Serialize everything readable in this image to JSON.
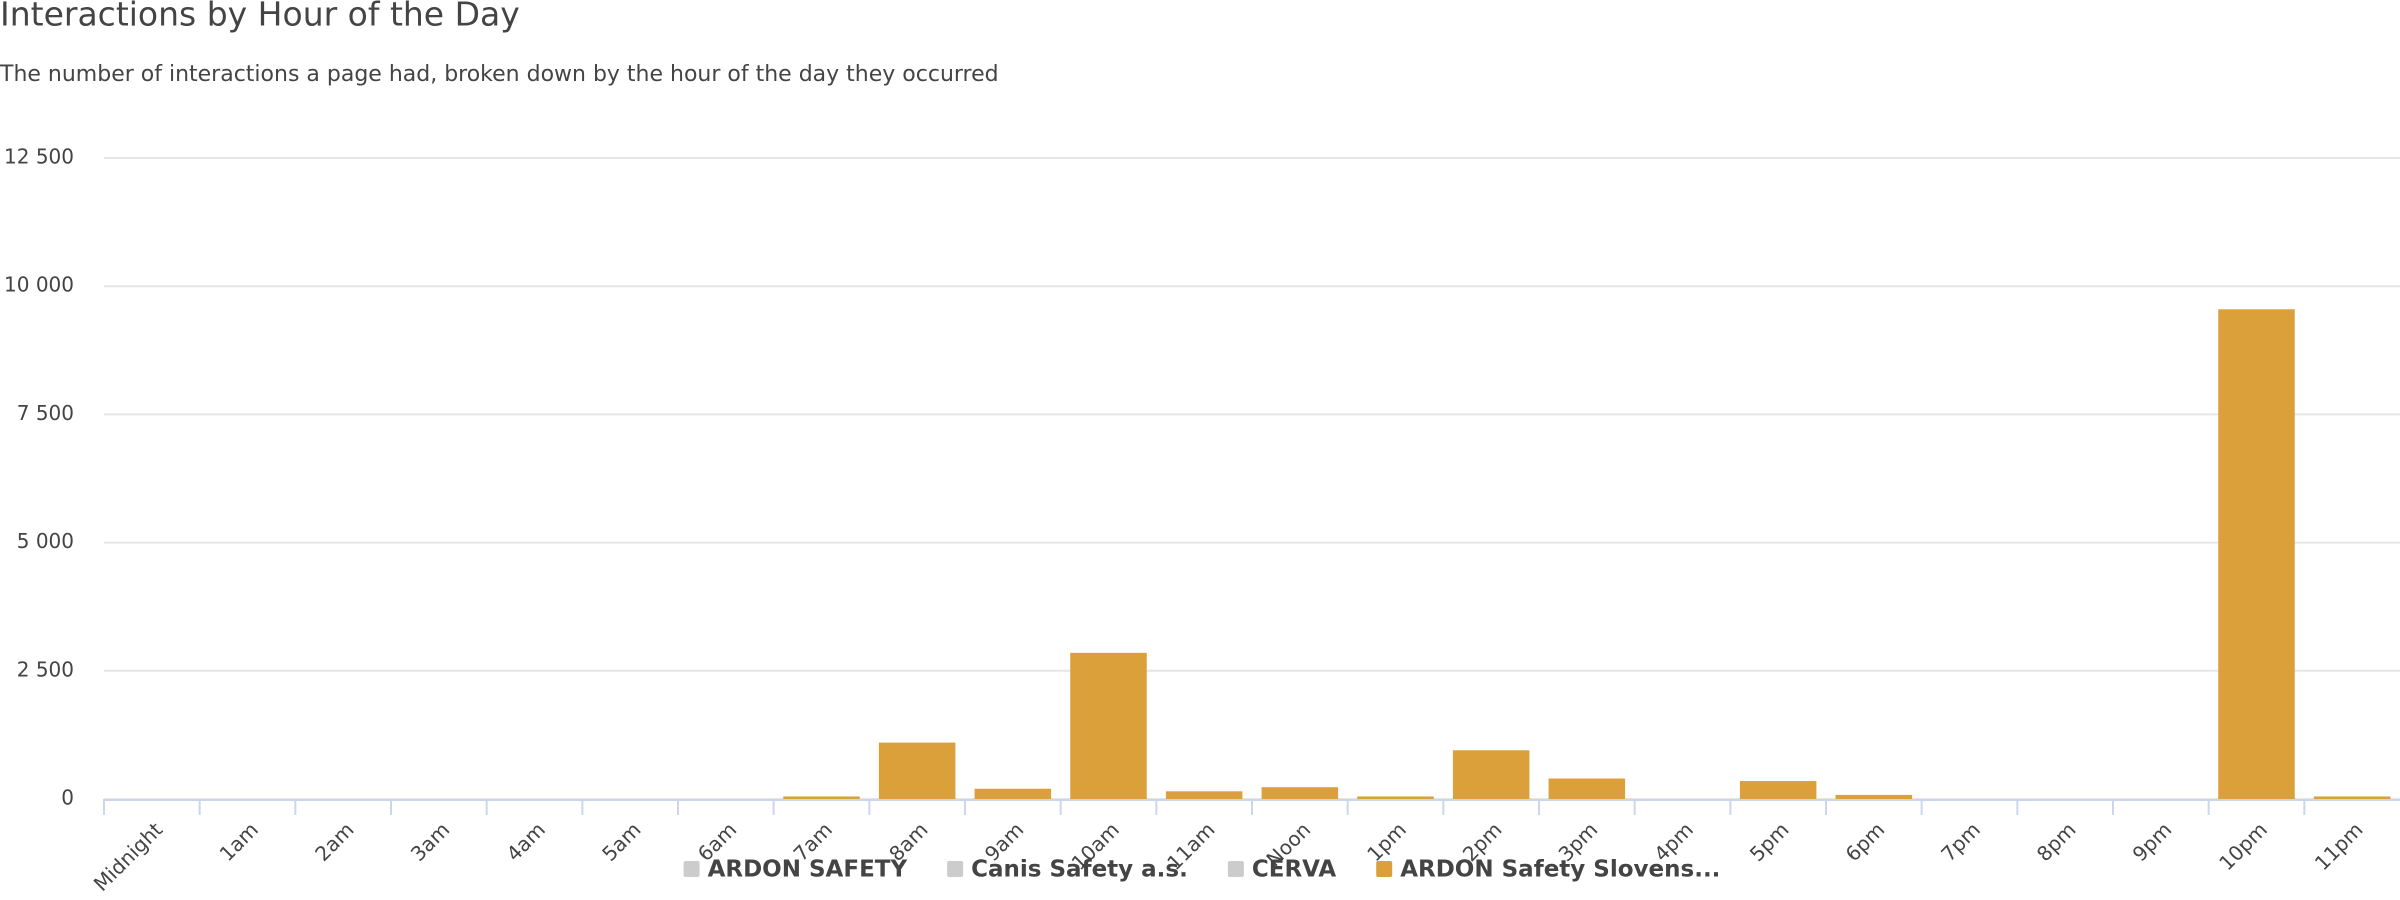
{
  "chart_data": {
    "type": "bar",
    "title": "Interactions by Hour of the Day",
    "subtitle": "The number of interactions a page had, broken down by the hour of the day they occurred",
    "categories": [
      "Midnight",
      "1am",
      "2am",
      "3am",
      "4am",
      "5am",
      "6am",
      "7am",
      "8am",
      "9am",
      "10am",
      "11am",
      "Noon",
      "1pm",
      "2pm",
      "3pm",
      "4pm",
      "5pm",
      "6pm",
      "7pm",
      "8pm",
      "9pm",
      "10pm",
      "11pm"
    ],
    "series": [
      {
        "name": "ARDON SAFETY",
        "color": "#cccccc",
        "hidden": true,
        "values": [
          null,
          null,
          null,
          null,
          null,
          null,
          null,
          null,
          null,
          null,
          null,
          null,
          null,
          null,
          null,
          null,
          null,
          null,
          null,
          null,
          null,
          null,
          null,
          null
        ]
      },
      {
        "name": "Canis Safety a.s.",
        "color": "#cccccc",
        "hidden": true,
        "values": [
          null,
          null,
          null,
          null,
          null,
          null,
          null,
          null,
          null,
          null,
          null,
          null,
          null,
          null,
          null,
          null,
          null,
          null,
          null,
          null,
          null,
          null,
          null,
          null
        ]
      },
      {
        "name": "CERVA",
        "color": "#cccccc",
        "hidden": true,
        "values": [
          null,
          null,
          null,
          null,
          null,
          null,
          null,
          null,
          null,
          null,
          null,
          null,
          null,
          null,
          null,
          null,
          null,
          null,
          null,
          null,
          null,
          null,
          null,
          null
        ]
      },
      {
        "name": "ARDON Safety Slovens...",
        "color": "#dca03a",
        "hidden": false,
        "values": [
          0,
          0,
          0,
          0,
          0,
          0,
          0,
          50,
          1100,
          200,
          2850,
          150,
          230,
          50,
          950,
          400,
          0,
          350,
          80,
          0,
          0,
          0,
          9550,
          50
        ]
      }
    ],
    "ylim": [
      0,
      12500
    ],
    "yticks": [
      0,
      {
        "value": 2500,
        "label": "2 500"
      },
      {
        "value": 5000,
        "label": "5 000"
      },
      {
        "value": 7500,
        "label": "7 500"
      },
      {
        "value": 10000,
        "label": "10 000"
      },
      {
        "value": 12500,
        "label": "12 500"
      }
    ],
    "grid": true,
    "legend": "bottom"
  }
}
